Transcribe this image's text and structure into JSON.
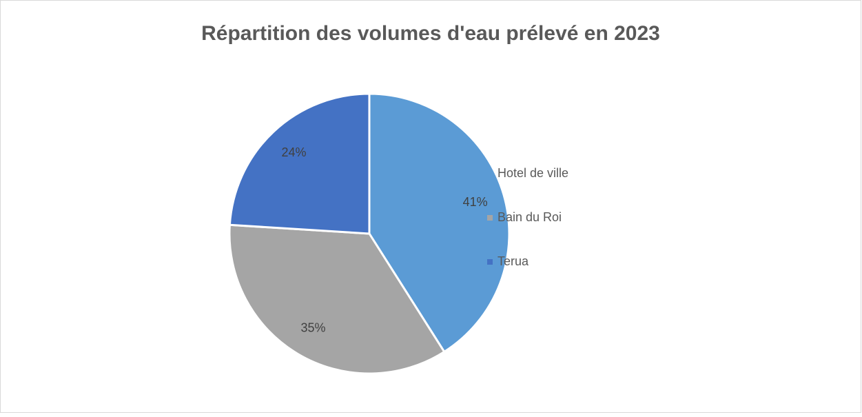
{
  "chart_data": {
    "type": "pie",
    "title": "Répartition des volumes d'eau prélevé en 2023",
    "categories": [
      "Hotel de ville",
      "Bain du Roi",
      "Terua"
    ],
    "values": [
      41,
      35,
      24
    ],
    "value_labels": [
      "41%",
      "35%",
      "24%"
    ],
    "colors": [
      "#5b9bd5",
      "#a5a5a5",
      "#4472c4"
    ],
    "legend": "right"
  }
}
